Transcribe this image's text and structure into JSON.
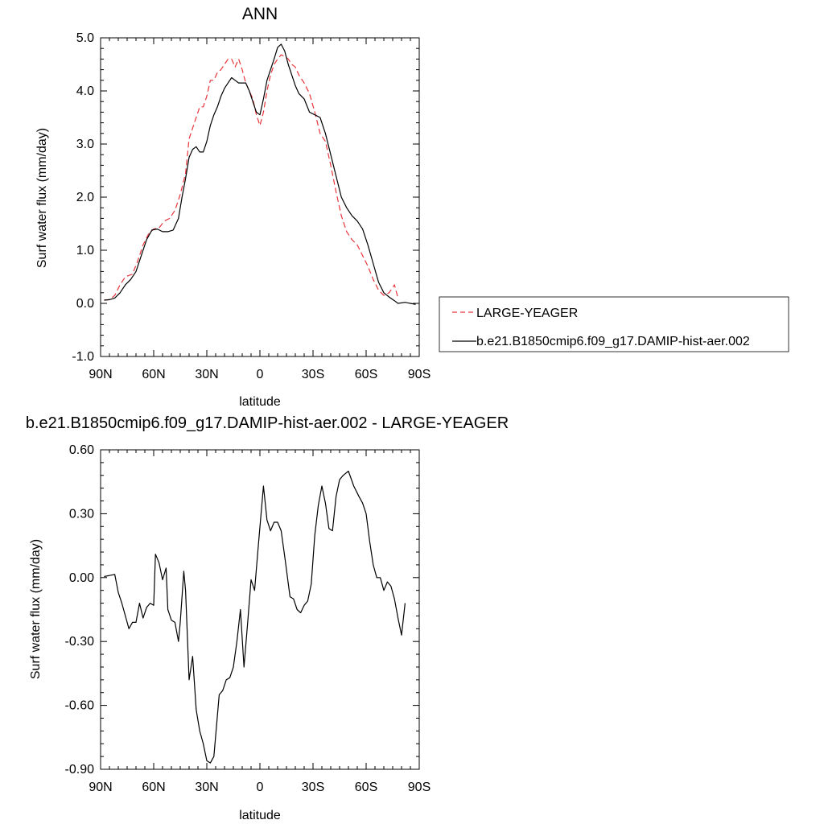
{
  "chart_data": [
    {
      "type": "line",
      "title": "ANN",
      "xlabel": "latitude",
      "ylabel": "Surf water flux (mm/day)",
      "xlim": [
        90,
        -90
      ],
      "ylim": [
        -1.0,
        5.0
      ],
      "xticks": [
        90,
        60,
        30,
        0,
        -30,
        -60,
        -90
      ],
      "xtick_labels": [
        "90N",
        "60N",
        "30N",
        "0",
        "30S",
        "60S",
        "90S"
      ],
      "yticks": [
        -1.0,
        0.0,
        1.0,
        2.0,
        3.0,
        4.0,
        5.0
      ],
      "ytick_labels": [
        "-1.0",
        "0.0",
        "1.0",
        "2.0",
        "3.0",
        "4.0",
        "5.0"
      ],
      "grid": false,
      "legend_position": "right",
      "series": [
        {
          "name": "LARGE-YEAGER",
          "color": "#e8343a",
          "dash": "dashed",
          "points": [
            [
              88,
              0.06
            ],
            [
              85,
              0.07
            ],
            [
              82,
              0.15
            ],
            [
              79,
              0.35
            ],
            [
              76,
              0.5
            ],
            [
              72,
              0.55
            ],
            [
              69,
              0.8
            ],
            [
              66,
              1.1
            ],
            [
              63,
              1.3
            ],
            [
              60,
              1.4
            ],
            [
              57,
              1.42
            ],
            [
              54,
              1.55
            ],
            [
              51,
              1.6
            ],
            [
              48,
              1.75
            ],
            [
              45,
              2.05
            ],
            [
              42,
              2.45
            ],
            [
              40,
              3.1
            ],
            [
              38,
              3.3
            ],
            [
              36,
              3.5
            ],
            [
              34,
              3.7
            ],
            [
              32,
              3.7
            ],
            [
              30,
              3.9
            ],
            [
              28,
              4.2
            ],
            [
              26,
              4.2
            ],
            [
              24,
              4.35
            ],
            [
              22,
              4.4
            ],
            [
              20,
              4.5
            ],
            [
              18,
              4.6
            ],
            [
              16,
              4.6
            ],
            [
              14,
              4.45
            ],
            [
              12,
              4.6
            ],
            [
              10,
              4.4
            ],
            [
              8,
              4.15
            ],
            [
              6,
              4.0
            ],
            [
              4,
              3.85
            ],
            [
              2,
              3.55
            ],
            [
              0,
              3.35
            ],
            [
              -2,
              3.6
            ],
            [
              -4,
              4.0
            ],
            [
              -6,
              4.3
            ],
            [
              -8,
              4.5
            ],
            [
              -10,
              4.6
            ],
            [
              -12,
              4.68
            ],
            [
              -14,
              4.65
            ],
            [
              -16,
              4.6
            ],
            [
              -18,
              4.5
            ],
            [
              -20,
              4.45
            ],
            [
              -22,
              4.3
            ],
            [
              -25,
              4.15
            ],
            [
              -28,
              3.95
            ],
            [
              -31,
              3.6
            ],
            [
              -34,
              3.2
            ],
            [
              -37,
              3.05
            ],
            [
              -40,
              2.6
            ],
            [
              -43,
              2.1
            ],
            [
              -46,
              1.65
            ],
            [
              -49,
              1.35
            ],
            [
              -52,
              1.2
            ],
            [
              -55,
              1.1
            ],
            [
              -58,
              0.9
            ],
            [
              -61,
              0.7
            ],
            [
              -64,
              0.45
            ],
            [
              -67,
              0.25
            ],
            [
              -70,
              0.15
            ],
            [
              -73,
              0.2
            ],
            [
              -76,
              0.35
            ],
            [
              -78,
              0.1
            ]
          ]
        },
        {
          "name": "b.e21.B1850cmip6.f09_g17.DAMIP-hist-aer.002",
          "color": "#000000",
          "dash": "solid",
          "points": [
            [
              88,
              0.06
            ],
            [
              85,
              0.07
            ],
            [
              82,
              0.1
            ],
            [
              79,
              0.2
            ],
            [
              76,
              0.35
            ],
            [
              73,
              0.45
            ],
            [
              70,
              0.6
            ],
            [
              67,
              0.9
            ],
            [
              64,
              1.2
            ],
            [
              61,
              1.38
            ],
            [
              58,
              1.4
            ],
            [
              55,
              1.35
            ],
            [
              52,
              1.35
            ],
            [
              49,
              1.38
            ],
            [
              46,
              1.6
            ],
            [
              44,
              2.0
            ],
            [
              42,
              2.35
            ],
            [
              40,
              2.75
            ],
            [
              38,
              2.9
            ],
            [
              36,
              2.95
            ],
            [
              34,
              2.85
            ],
            [
              32,
              2.85
            ],
            [
              30,
              3.05
            ],
            [
              28,
              3.35
            ],
            [
              26,
              3.55
            ],
            [
              24,
              3.7
            ],
            [
              22,
              3.9
            ],
            [
              20,
              4.05
            ],
            [
              18,
              4.15
            ],
            [
              16,
              4.25
            ],
            [
              14,
              4.2
            ],
            [
              12,
              4.15
            ],
            [
              10,
              4.15
            ],
            [
              8,
              4.15
            ],
            [
              6,
              4.0
            ],
            [
              4,
              3.8
            ],
            [
              2,
              3.6
            ],
            [
              0,
              3.55
            ],
            [
              -2,
              3.85
            ],
            [
              -4,
              4.2
            ],
            [
              -6,
              4.4
            ],
            [
              -8,
              4.6
            ],
            [
              -10,
              4.82
            ],
            [
              -12,
              4.88
            ],
            [
              -14,
              4.75
            ],
            [
              -16,
              4.5
            ],
            [
              -18,
              4.3
            ],
            [
              -20,
              4.1
            ],
            [
              -22,
              3.95
            ],
            [
              -25,
              3.85
            ],
            [
              -28,
              3.6
            ],
            [
              -31,
              3.55
            ],
            [
              -34,
              3.5
            ],
            [
              -37,
              3.2
            ],
            [
              -40,
              2.8
            ],
            [
              -43,
              2.4
            ],
            [
              -46,
              2.0
            ],
            [
              -49,
              1.8
            ],
            [
              -52,
              1.65
            ],
            [
              -55,
              1.55
            ],
            [
              -58,
              1.4
            ],
            [
              -61,
              1.1
            ],
            [
              -64,
              0.75
            ],
            [
              -67,
              0.4
            ],
            [
              -70,
              0.2
            ],
            [
              -73,
              0.12
            ],
            [
              -76,
              0.05
            ],
            [
              -78,
              0.0
            ],
            [
              -82,
              0.02
            ],
            [
              -85,
              0.0
            ],
            [
              -88,
              -0.02
            ]
          ]
        }
      ]
    },
    {
      "type": "line",
      "title": "b.e21.B1850cmip6.f09_g17.DAMIP-hist-aer.002 - LARGE-YEAGER",
      "xlabel": "latitude",
      "ylabel": "Surf water flux (mm/day)",
      "xlim": [
        90,
        -90
      ],
      "ylim": [
        -0.9,
        0.6
      ],
      "xticks": [
        90,
        60,
        30,
        0,
        -30,
        -60,
        -90
      ],
      "xtick_labels": [
        "90N",
        "60N",
        "30N",
        "0",
        "30S",
        "60S",
        "90S"
      ],
      "yticks": [
        -0.9,
        -0.6,
        -0.3,
        0.0,
        0.3,
        0.6
      ],
      "ytick_labels": [
        "-0.90",
        "-0.60",
        "-0.30",
        "0.00",
        "0.30",
        "0.60"
      ],
      "grid": false,
      "series": [
        {
          "color": "#000000",
          "dash": "solid",
          "points": [
            [
              88,
              0.005
            ],
            [
              85,
              0.01
            ],
            [
              82,
              0.015
            ],
            [
              80,
              -0.07
            ],
            [
              78,
              -0.12
            ],
            [
              76,
              -0.18
            ],
            [
              74,
              -0.24
            ],
            [
              72,
              -0.21
            ],
            [
              70,
              -0.21
            ],
            [
              68,
              -0.12
            ],
            [
              66,
              -0.19
            ],
            [
              64,
              -0.14
            ],
            [
              62,
              -0.12
            ],
            [
              60,
              -0.13
            ],
            [
              59,
              0.11
            ],
            [
              57,
              0.07
            ],
            [
              55,
              -0.01
            ],
            [
              53,
              0.045
            ],
            [
              52,
              -0.15
            ],
            [
              50,
              -0.2
            ],
            [
              48,
              -0.21
            ],
            [
              46,
              -0.3
            ],
            [
              45,
              -0.21
            ],
            [
              43,
              0.03
            ],
            [
              42,
              -0.06
            ],
            [
              40,
              -0.48
            ],
            [
              38,
              -0.37
            ],
            [
              36,
              -0.62
            ],
            [
              34,
              -0.72
            ],
            [
              32,
              -0.78
            ],
            [
              30,
              -0.86
            ],
            [
              28,
              -0.87
            ],
            [
              26,
              -0.84
            ],
            [
              23,
              -0.55
            ],
            [
              21,
              -0.53
            ],
            [
              19,
              -0.48
            ],
            [
              17,
              -0.47
            ],
            [
              15,
              -0.42
            ],
            [
              13,
              -0.3
            ],
            [
              11,
              -0.15
            ],
            [
              9,
              -0.42
            ],
            [
              7,
              -0.22
            ],
            [
              5,
              -0.01
            ],
            [
              3,
              -0.06
            ],
            [
              1,
              0.14
            ],
            [
              -2,
              0.43
            ],
            [
              -4,
              0.27
            ],
            [
              -6,
              0.22
            ],
            [
              -8,
              0.26
            ],
            [
              -10,
              0.26
            ],
            [
              -12,
              0.22
            ],
            [
              -14,
              0.1
            ],
            [
              -17,
              -0.09
            ],
            [
              -19,
              -0.1
            ],
            [
              -21,
              -0.15
            ],
            [
              -23,
              -0.165
            ],
            [
              -25,
              -0.13
            ],
            [
              -27,
              -0.11
            ],
            [
              -29,
              -0.03
            ],
            [
              -31,
              0.2
            ],
            [
              -33,
              0.34
            ],
            [
              -35,
              0.43
            ],
            [
              -37,
              0.35
            ],
            [
              -39,
              0.23
            ],
            [
              -41,
              0.22
            ],
            [
              -43,
              0.38
            ],
            [
              -45,
              0.46
            ],
            [
              -47,
              0.48
            ],
            [
              -50,
              0.5
            ],
            [
              -53,
              0.43
            ],
            [
              -56,
              0.38
            ],
            [
              -58,
              0.35
            ],
            [
              -60,
              0.3
            ],
            [
              -62,
              0.17
            ],
            [
              -64,
              0.06
            ],
            [
              -66,
              0.0
            ],
            [
              -68,
              0.0
            ],
            [
              -70,
              -0.06
            ],
            [
              -72,
              -0.02
            ],
            [
              -74,
              -0.04
            ],
            [
              -76,
              -0.1
            ],
            [
              -78,
              -0.19
            ],
            [
              -80,
              -0.27
            ],
            [
              -82,
              -0.12
            ]
          ]
        }
      ]
    }
  ],
  "legend": {
    "entries": [
      "LARGE-YEAGER",
      "b.e21.B1850cmip6.f09_g17.DAMIP-hist-aer.002"
    ]
  }
}
